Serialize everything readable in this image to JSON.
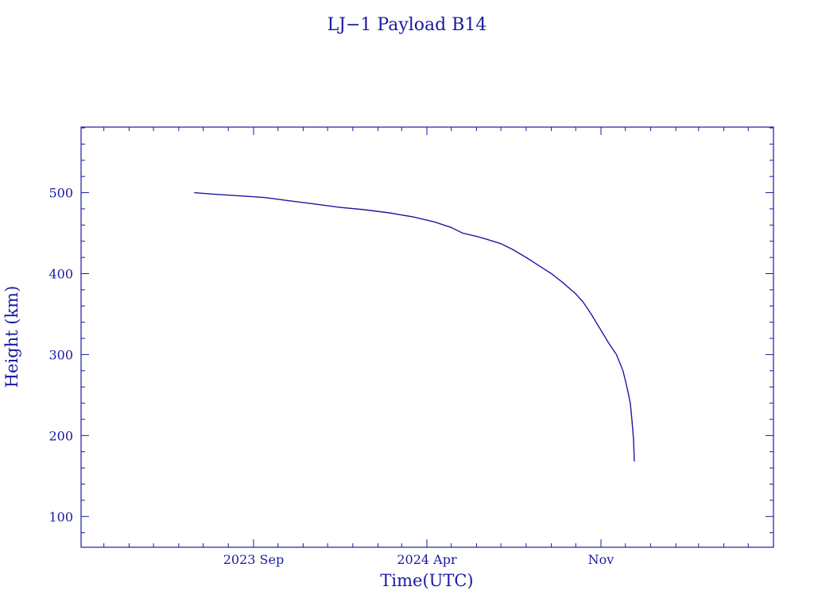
{
  "chart_data": {
    "type": "line",
    "title": "LJ−1 Payload B14",
    "xlabel": "Time(UTC)",
    "ylabel": "Height (km)",
    "x_ticks": [
      {
        "label": "2023 Sep",
        "date": "2023-09-01"
      },
      {
        "label": "2024 Apr",
        "date": "2024-04-01"
      },
      {
        "label": "Nov",
        "date": "2024-11-01"
      }
    ],
    "x_range": [
      "2023-02-01",
      "2025-06-01"
    ],
    "y_ticks": [
      100,
      200,
      300,
      400,
      500
    ],
    "ylim": [
      62,
      581
    ],
    "grid": false,
    "series": [
      {
        "x": [
          "2023-06-20",
          "2023-07-15",
          "2023-08-15",
          "2023-09-15",
          "2023-10-15",
          "2023-11-15",
          "2023-12-15",
          "2024-01-15",
          "2024-02-15",
          "2024-03-15",
          "2024-04-10",
          "2024-05-01",
          "2024-05-15",
          "2024-06-01",
          "2024-06-15",
          "2024-07-01",
          "2024-07-15",
          "2024-08-01",
          "2024-08-15",
          "2024-09-01",
          "2024-09-15",
          "2024-10-01",
          "2024-10-10",
          "2024-10-20",
          "2024-11-01",
          "2024-11-10",
          "2024-11-20",
          "2024-11-28",
          "2024-12-01",
          "2024-12-04",
          "2024-12-07",
          "2024-12-09",
          "2024-12-11",
          "2024-12-12"
        ],
        "y": [
          500,
          498,
          496,
          494,
          490,
          486,
          482,
          479,
          475,
          470,
          464,
          457,
          450,
          446,
          442,
          437,
          430,
          420,
          411,
          400,
          389,
          375,
          365,
          350,
          330,
          315,
          300,
          280,
          268,
          255,
          240,
          220,
          195,
          168
        ]
      }
    ]
  },
  "colors": {
    "ink": "#1a1aa0",
    "background": "#ffffff"
  }
}
